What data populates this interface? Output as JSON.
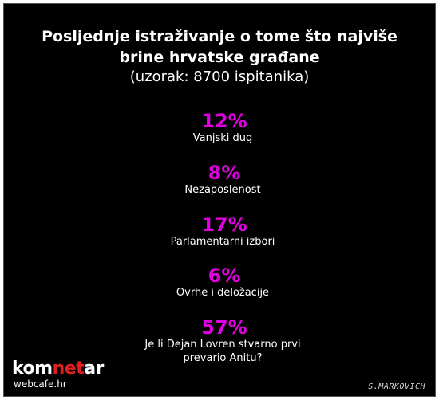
{
  "title": {
    "line1": "Posljednje istraživanje o tome što najviše",
    "line2": "brine hrvatske građane",
    "subtitle": "(uzorak: 8700 ispitanika)"
  },
  "results": [
    {
      "percent": "12%",
      "label_lines": [
        "Vanjski dug"
      ]
    },
    {
      "percent": "8%",
      "label_lines": [
        "Nezaposlenost"
      ]
    },
    {
      "percent": "17%",
      "label_lines": [
        "Parlamentarni izbori"
      ]
    },
    {
      "percent": "6%",
      "label_lines": [
        "Ovrhe i deložacije"
      ]
    },
    {
      "percent": "57%",
      "label_lines": [
        "Je li Dejan Lovren stvarno prvi",
        "prevario Anitu?"
      ]
    }
  ],
  "logo": {
    "part1": "kom",
    "part2": "net",
    "part3": "ar",
    "sub": "webcafe.hr"
  },
  "signature": "S.MARKOVICH",
  "colors": {
    "background": "#000000",
    "percent": "#e000e0",
    "text": "#ffffff",
    "logo_accent": "#e02020"
  }
}
